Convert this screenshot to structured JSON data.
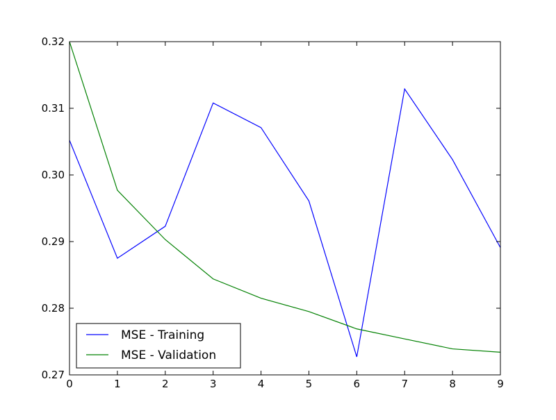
{
  "chart_data": {
    "type": "line",
    "title": "",
    "xlabel": "",
    "ylabel": "",
    "x": [
      0,
      1,
      2,
      3,
      4,
      5,
      6,
      7,
      8,
      9
    ],
    "xlim": [
      0,
      9
    ],
    "ylim": [
      0.27,
      0.32
    ],
    "x_ticks": [
      "0",
      "1",
      "2",
      "3",
      "4",
      "5",
      "6",
      "7",
      "8",
      "9"
    ],
    "y_ticks": [
      {
        "value": 0.27,
        "label": "0.27"
      },
      {
        "value": 0.28,
        "label": "0.28"
      },
      {
        "value": 0.29,
        "label": "0.29"
      },
      {
        "value": 0.3,
        "label": "0.30"
      },
      {
        "value": 0.31,
        "label": "0.31"
      },
      {
        "value": 0.32,
        "label": "0.32"
      }
    ],
    "grid": false,
    "legend_position": "lower-left",
    "series": [
      {
        "name": "MSE - Training",
        "color": "#0000ff",
        "values": [
          0.3052,
          0.2875,
          0.2923,
          0.3108,
          0.3071,
          0.2961,
          0.2727,
          0.3129,
          0.3023,
          0.2891
        ]
      },
      {
        "name": "MSE - Validation",
        "color": "#008000",
        "values": [
          0.32,
          0.2977,
          0.2903,
          0.2844,
          0.2815,
          0.2795,
          0.2769,
          0.2754,
          0.2739,
          0.2734
        ]
      }
    ]
  }
}
